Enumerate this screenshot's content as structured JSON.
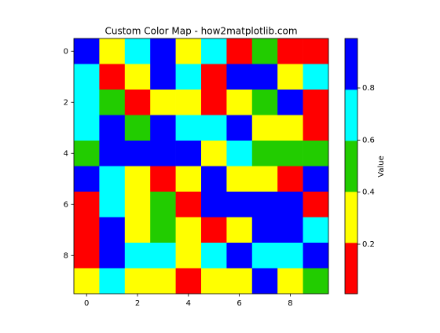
{
  "chart_data": {
    "type": "heatmap",
    "title": "Custom Color Map - how2matplotlib.com",
    "colorbar_label": "Value",
    "colors": [
      "#ff0000",
      "#ffff00",
      "#22cc00",
      "#00ffff",
      "#0000ff"
    ],
    "clim": [
      0.01,
      0.99
    ],
    "colorbar_ticks": [
      0.2,
      0.4,
      0.6,
      0.8
    ],
    "xlim": [
      -0.5,
      9.5
    ],
    "ylim": [
      9.5,
      -0.5
    ],
    "xticks": [
      0,
      2,
      4,
      6,
      8
    ],
    "yticks": [
      0,
      2,
      4,
      6,
      8
    ],
    "z": [
      [
        0.9,
        0.3,
        0.7,
        0.9,
        0.3,
        0.7,
        0.1,
        0.5,
        0.1,
        0.1
      ],
      [
        0.7,
        0.1,
        0.3,
        0.9,
        0.7,
        0.1,
        0.9,
        0.9,
        0.3,
        0.7
      ],
      [
        0.7,
        0.5,
        0.1,
        0.3,
        0.3,
        0.1,
        0.3,
        0.5,
        0.9,
        0.1
      ],
      [
        0.7,
        0.9,
        0.5,
        0.9,
        0.7,
        0.7,
        0.9,
        0.3,
        0.3,
        0.1
      ],
      [
        0.5,
        0.9,
        0.9,
        0.9,
        0.9,
        0.3,
        0.7,
        0.5,
        0.5,
        0.5
      ],
      [
        0.9,
        0.7,
        0.3,
        0.1,
        0.3,
        0.9,
        0.3,
        0.3,
        0.1,
        0.9
      ],
      [
        0.1,
        0.7,
        0.3,
        0.5,
        0.1,
        0.9,
        0.9,
        0.9,
        0.9,
        0.1
      ],
      [
        0.1,
        0.9,
        0.3,
        0.5,
        0.3,
        0.1,
        0.3,
        0.9,
        0.9,
        0.7
      ],
      [
        0.1,
        0.9,
        0.7,
        0.7,
        0.3,
        0.7,
        0.9,
        0.7,
        0.7,
        0.9
      ],
      [
        0.3,
        0.7,
        0.3,
        0.3,
        0.1,
        0.3,
        0.3,
        0.9,
        0.3,
        0.5
      ]
    ]
  }
}
